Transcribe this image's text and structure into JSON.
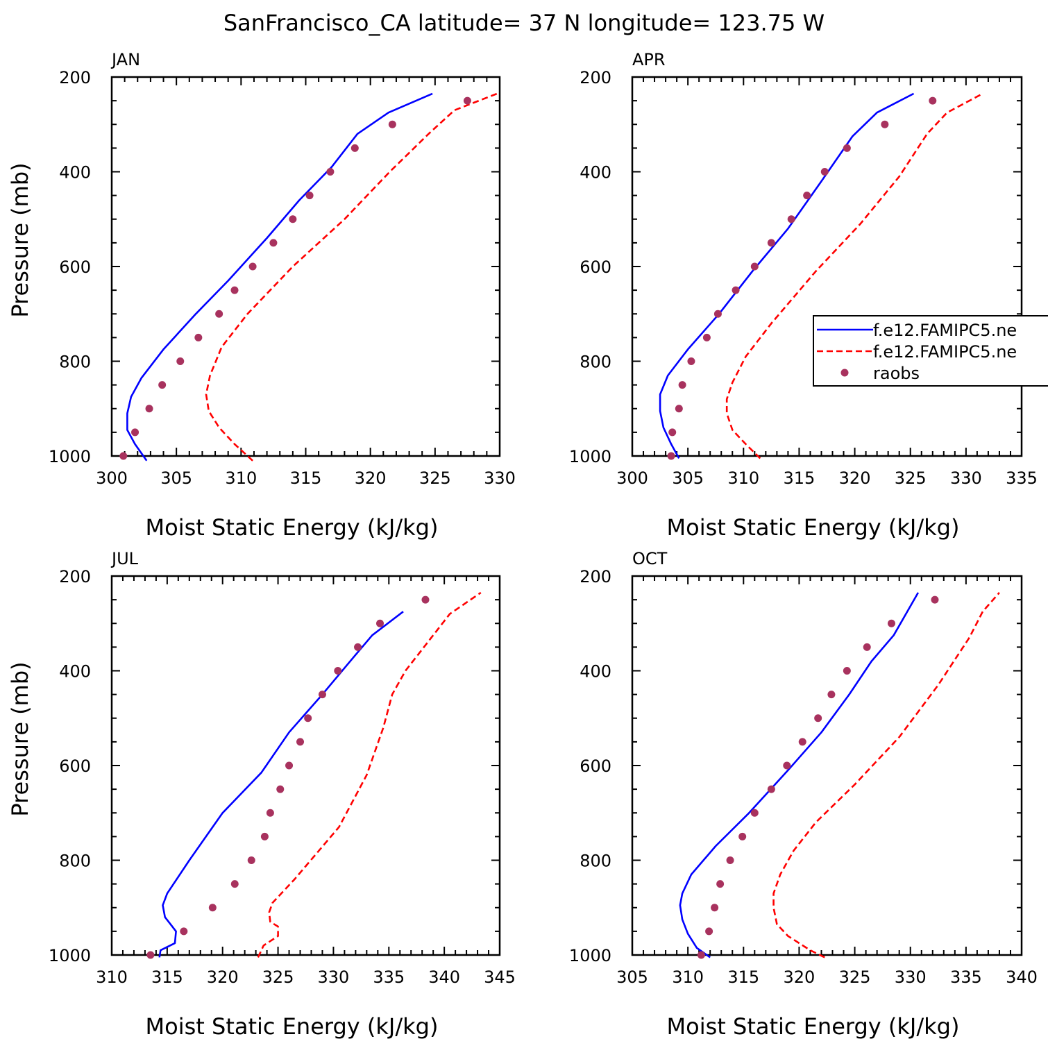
{
  "title": "SanFrancisco_CA  latitude= 37 N longitude= 123.75 W",
  "colors": {
    "blue": "#0000ff",
    "red": "#ff0000",
    "dots": "#a8325e"
  },
  "legend": {
    "entries": [
      {
        "label": "f.e12.FAMIPC5.ne",
        "style": "blue-solid"
      },
      {
        "label": "f.e12.FAMIPC5.ne",
        "style": "red-dashed"
      },
      {
        "label": "raobs",
        "style": "dots"
      }
    ]
  },
  "chart_data": [
    {
      "type": "line",
      "panel": "JAN",
      "xlabel": "Moist Static Energy (kJ/kg)",
      "ylabel": "Pressure (mb)",
      "xlim": [
        300,
        330
      ],
      "ylim": [
        200,
        1000
      ],
      "y_reversed": true,
      "xticks": [
        300,
        305,
        310,
        315,
        320,
        325,
        330
      ],
      "yticks": [
        200,
        400,
        600,
        800,
        1000
      ],
      "series": [
        {
          "name": "f.e12.FAMIPC5.ne",
          "color": "blue",
          "dash": false,
          "x": [
            302.7,
            301.8,
            301.2,
            301.2,
            301.5,
            302.3,
            304.0,
            306.5,
            309.0,
            312.0,
            314.5,
            317.0,
            319.0,
            321.4,
            324.8
          ],
          "y": [
            1010,
            975,
            945,
            910,
            875,
            835,
            775,
            700,
            630,
            540,
            460,
            390,
            320,
            275,
            235
          ]
        },
        {
          "name": "f.e12.FAMIPC5.ne",
          "color": "red",
          "dash": true,
          "x": [
            310.9,
            309.5,
            308.3,
            307.5,
            307.3,
            307.6,
            308.5,
            310.5,
            314.0,
            318.0,
            321.5,
            324.5,
            326.5,
            329.8
          ],
          "y": [
            1010,
            975,
            940,
            905,
            870,
            830,
            770,
            700,
            600,
            500,
            400,
            320,
            270,
            235
          ]
        },
        {
          "name": "raobs",
          "color": "dots",
          "scatter": true,
          "x": [
            300.9,
            301.8,
            302.9,
            303.9,
            305.3,
            306.7,
            308.3,
            309.5,
            310.9,
            312.5,
            314.0,
            315.3,
            316.9,
            318.8,
            321.7,
            327.5
          ],
          "y": [
            1000,
            950,
            900,
            850,
            800,
            750,
            700,
            650,
            600,
            550,
            500,
            450,
            400,
            350,
            300,
            250
          ]
        }
      ]
    },
    {
      "type": "line",
      "panel": "APR",
      "xlabel": "Moist Static Energy (kJ/kg)",
      "ylabel": "",
      "xlim": [
        300,
        335
      ],
      "ylim": [
        200,
        1000
      ],
      "y_reversed": true,
      "xticks": [
        300,
        305,
        310,
        315,
        320,
        325,
        330,
        335
      ],
      "yticks": [
        200,
        400,
        600,
        800,
        1000
      ],
      "series": [
        {
          "name": "f.e12.FAMIPC5.ne",
          "color": "blue",
          "dash": false,
          "x": [
            304.2,
            303.5,
            302.8,
            302.5,
            302.5,
            303.2,
            305.0,
            307.8,
            310.8,
            314.0,
            317.0,
            319.8,
            322.0,
            325.3
          ],
          "y": [
            1005,
            975,
            940,
            905,
            870,
            830,
            775,
            700,
            610,
            520,
            420,
            325,
            275,
            235
          ]
        },
        {
          "name": "f.e12.FAMIPC5.ne",
          "color": "red",
          "dash": true,
          "x": [
            311.5,
            310.2,
            309.0,
            308.5,
            308.5,
            309.0,
            310.2,
            312.5,
            316.5,
            320.5,
            324.0,
            326.5,
            328.3,
            331.5
          ],
          "y": [
            1005,
            975,
            945,
            910,
            880,
            845,
            790,
            720,
            610,
            510,
            410,
            320,
            275,
            235
          ]
        },
        {
          "name": "raobs",
          "color": "dots",
          "scatter": true,
          "x": [
            303.5,
            303.6,
            304.2,
            304.5,
            305.3,
            306.7,
            307.7,
            309.3,
            311.0,
            312.5,
            314.3,
            315.7,
            317.3,
            319.3,
            322.7,
            327.0
          ],
          "y": [
            1000,
            950,
            900,
            850,
            800,
            750,
            700,
            650,
            600,
            550,
            500,
            450,
            400,
            350,
            300,
            250
          ]
        }
      ]
    },
    {
      "type": "line",
      "panel": "JUL",
      "xlabel": "Moist Static Energy (kJ/kg)",
      "ylabel": "Pressure (mb)",
      "xlim": [
        310,
        345
      ],
      "ylim": [
        200,
        1000
      ],
      "y_reversed": true,
      "xticks": [
        310,
        315,
        320,
        325,
        330,
        335,
        340,
        345
      ],
      "yticks": [
        200,
        400,
        600,
        800,
        1000
      ],
      "series": [
        {
          "name": "f.e12.FAMIPC5.ne",
          "color": "blue",
          "dash": false,
          "x": [
            314.3,
            314.4,
            315.7,
            315.8,
            315.3,
            314.8,
            314.6,
            315.0,
            317.0,
            320.0,
            323.5,
            326.0,
            329.0,
            331.5,
            333.5,
            336.3
          ],
          "y": [
            1005,
            990,
            975,
            950,
            935,
            920,
            895,
            870,
            800,
            700,
            615,
            530,
            450,
            380,
            325,
            275
          ]
        },
        {
          "name": "f.e12.FAMIPC5.ne",
          "color": "red",
          "dash": true,
          "x": [
            323.2,
            323.7,
            325.0,
            325.0,
            324.3,
            324.2,
            324.5,
            326.5,
            330.5,
            333.0,
            334.5,
            335.3,
            336.5,
            338.5,
            340.5,
            343.3
          ],
          "y": [
            1005,
            980,
            960,
            940,
            930,
            910,
            890,
            840,
            730,
            620,
            520,
            450,
            400,
            340,
            280,
            235
          ]
        },
        {
          "name": "raobs",
          "color": "dots",
          "scatter": true,
          "x": [
            313.5,
            316.5,
            319.1,
            321.1,
            322.6,
            323.8,
            324.3,
            325.2,
            326.0,
            327.0,
            327.7,
            329.0,
            330.4,
            332.2,
            334.2,
            338.3
          ],
          "y": [
            1000,
            950,
            900,
            850,
            800,
            750,
            700,
            650,
            600,
            550,
            500,
            450,
            400,
            350,
            300,
            250
          ]
        }
      ]
    },
    {
      "type": "line",
      "panel": "OCT",
      "xlabel": "Moist Static Energy (kJ/kg)",
      "ylabel": "",
      "xlim": [
        305,
        340
      ],
      "ylim": [
        200,
        1000
      ],
      "y_reversed": true,
      "xticks": [
        305,
        310,
        315,
        320,
        325,
        330,
        335,
        340
      ],
      "yticks": [
        200,
        400,
        600,
        800,
        1000
      ],
      "series": [
        {
          "name": "f.e12.FAMIPC5.ne",
          "color": "blue",
          "dash": false,
          "x": [
            312.0,
            310.8,
            310.0,
            309.5,
            309.3,
            309.5,
            310.3,
            312.5,
            315.5,
            319.0,
            322.0,
            324.5,
            326.5,
            328.5,
            330.7
          ],
          "y": [
            1005,
            985,
            955,
            925,
            895,
            870,
            830,
            770,
            700,
            610,
            530,
            450,
            380,
            325,
            235
          ]
        },
        {
          "name": "f.e12.FAMIPC5.ne",
          "color": "red",
          "dash": true,
          "x": [
            322.3,
            321.0,
            320.0,
            319.0,
            318.0,
            317.7,
            317.7,
            318.3,
            319.5,
            321.5,
            325.0,
            329.0,
            332.5,
            335.3,
            336.5,
            338.0
          ],
          "y": [
            1005,
            990,
            975,
            960,
            935,
            900,
            870,
            830,
            780,
            720,
            640,
            540,
            430,
            330,
            275,
            235
          ]
        },
        {
          "name": "raobs",
          "color": "dots",
          "scatter": true,
          "x": [
            311.2,
            311.9,
            312.4,
            312.9,
            313.8,
            314.9,
            316.0,
            317.5,
            318.9,
            320.3,
            321.7,
            322.9,
            324.3,
            326.1,
            328.3,
            332.2
          ],
          "y": [
            1000,
            950,
            900,
            850,
            800,
            750,
            700,
            650,
            600,
            550,
            500,
            450,
            400,
            350,
            300,
            250
          ]
        }
      ]
    }
  ]
}
